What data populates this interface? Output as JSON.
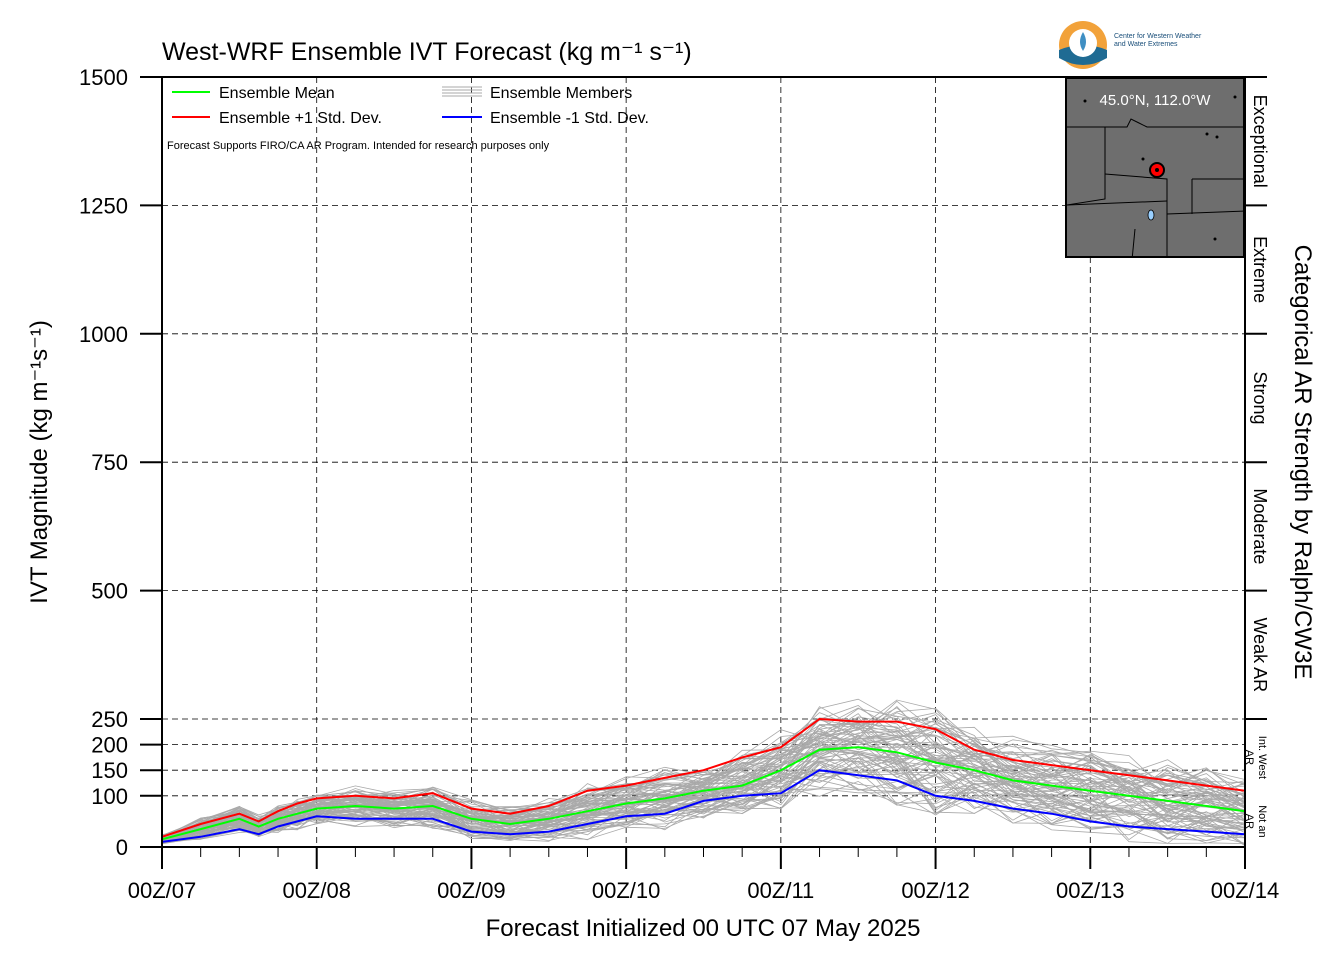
{
  "chart_data": {
    "type": "line",
    "title": "West-WRF Ensemble IVT Forecast (kg m⁻¹ s⁻¹)",
    "xlabel": "Forecast Initialized 00 UTC 07 May 2025",
    "ylabel": "IVT Magnitude (kg m⁻¹s⁻¹)",
    "right_label": "Categorical AR Strength by Ralph/CW3E",
    "ylim": [
      0,
      1500
    ],
    "xlim": [
      0,
      168
    ],
    "x_unit": "hours since 00Z/07",
    "grid": true,
    "legend_position": "top-left",
    "note": "Forecast Supports FIRO/CA AR Program. Intended for research purposes only",
    "x_tick_labels": [
      "00Z/07",
      "00Z/08",
      "00Z/09",
      "00Z/10",
      "00Z/11",
      "00Z/12",
      "00Z/13",
      "00Z/14"
    ],
    "y_ticks": [
      {
        "value": 0,
        "label": "0"
      },
      {
        "value": 100,
        "label": "100"
      },
      {
        "value": 150,
        "label": "150"
      },
      {
        "value": 200,
        "label": "200"
      },
      {
        "value": 250,
        "label": "250"
      },
      {
        "value": 500,
        "label": "500"
      },
      {
        "value": 750,
        "label": "750"
      },
      {
        "value": 1000,
        "label": "1000"
      },
      {
        "value": 1250,
        "label": "1250"
      },
      {
        "value": 1500,
        "label": "1500"
      }
    ],
    "categories_ar": [
      {
        "label": "Exceptional",
        "from": 1250,
        "to": 1500
      },
      {
        "label": "Extreme",
        "from": 1000,
        "to": 1250
      },
      {
        "label": "Strong",
        "from": 750,
        "to": 1000
      },
      {
        "label": "Moderate",
        "from": 500,
        "to": 750
      },
      {
        "label": "Weak AR",
        "from": 250,
        "to": 500
      },
      {
        "label": "Int. West AR",
        "from": 100,
        "to": 250
      },
      {
        "label": "Not an AR",
        "from": 0,
        "to": 100
      }
    ],
    "x": [
      0,
      6,
      12,
      15,
      18,
      21,
      24,
      30,
      36,
      42,
      48,
      54,
      60,
      66,
      72,
      78,
      84,
      90,
      96,
      102,
      108,
      114,
      120,
      126,
      132,
      138,
      144,
      150,
      156,
      162,
      168
    ],
    "series": [
      {
        "name": "Ensemble Mean",
        "color": "#00ff00",
        "values": [
          15,
          35,
          55,
          40,
          55,
          65,
          75,
          80,
          75,
          80,
          55,
          45,
          55,
          70,
          85,
          95,
          110,
          120,
          150,
          190,
          195,
          185,
          165,
          150,
          130,
          120,
          110,
          100,
          90,
          80,
          70
        ]
      },
      {
        "name": "Ensemble +1 Std. Dev.",
        "color": "#ff0000",
        "values": [
          20,
          45,
          65,
          50,
          70,
          85,
          95,
          100,
          95,
          105,
          75,
          65,
          80,
          110,
          120,
          135,
          150,
          175,
          195,
          250,
          245,
          245,
          230,
          190,
          170,
          160,
          150,
          140,
          130,
          120,
          110
        ]
      },
      {
        "name": "Ensemble -1 Std. Dev.",
        "color": "#0000ff",
        "values": [
          10,
          20,
          35,
          25,
          40,
          50,
          60,
          55,
          55,
          55,
          30,
          25,
          30,
          45,
          60,
          65,
          90,
          100,
          105,
          150,
          140,
          130,
          100,
          90,
          75,
          65,
          50,
          40,
          35,
          30,
          25
        ]
      }
    ],
    "members_legend": "Ensemble Members",
    "member_color": "#a9a9a9",
    "inset_map": {
      "location_label": "45.0°N, 112.0°W",
      "marker_color": "#ff0000"
    },
    "logo_text": [
      "Center for Western Weather",
      "and Water Extremes"
    ]
  }
}
